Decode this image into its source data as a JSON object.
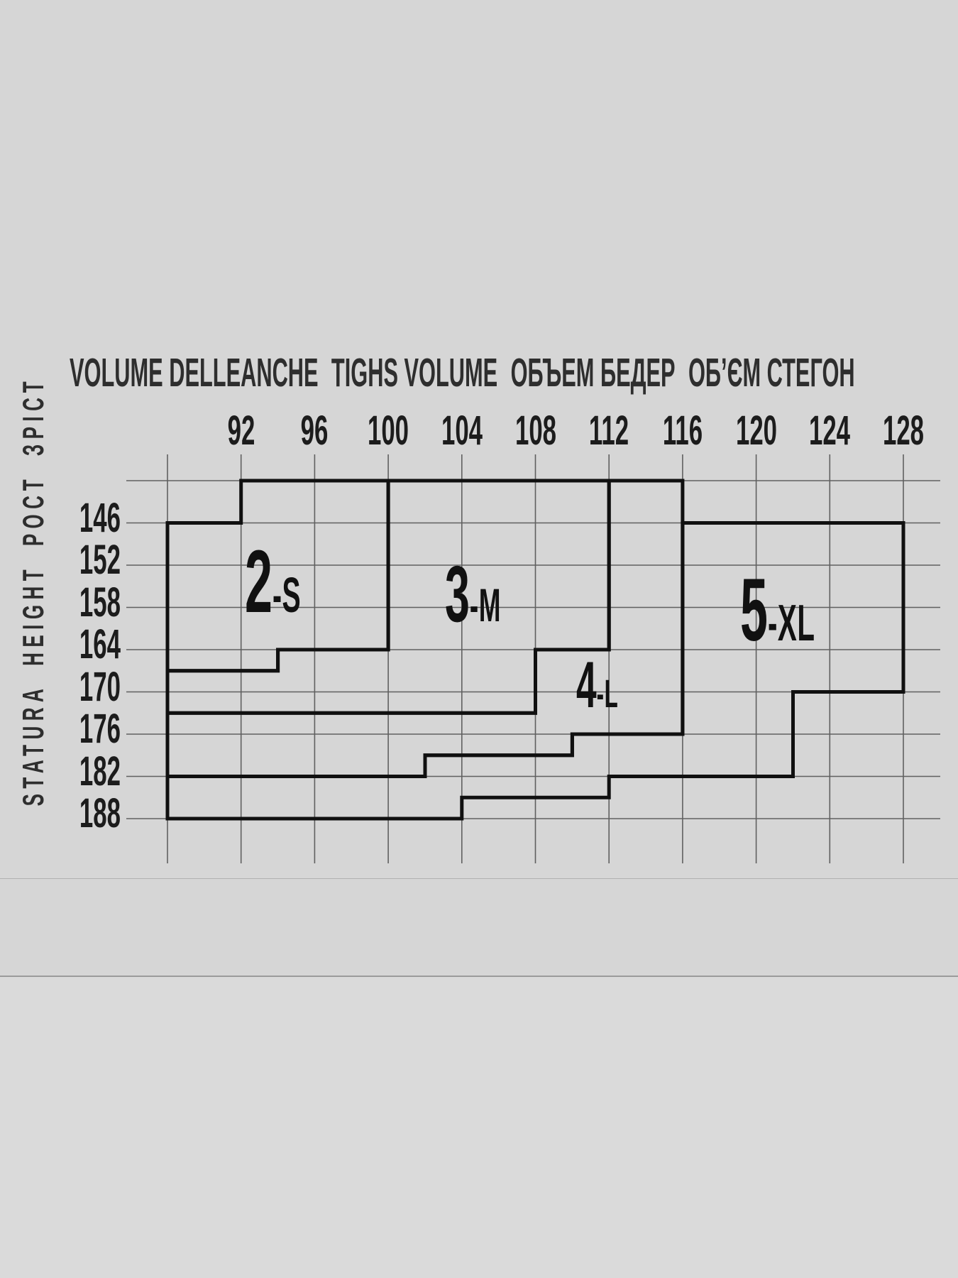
{
  "page": {
    "background_color": "#d6d6d6",
    "lower_panel_color": "#dadada"
  },
  "chart_data": {
    "type": "area",
    "description": "Tights sizing chart: stepped size regions plotted over a grid of height (cm, rows) versus hip volume (cm, columns)",
    "x_axis": {
      "label_groups": [
        "VOLUME DELLEANCHE",
        "TIGHS VOLUME",
        "ОБЪЕМ БЕДЕР",
        "ОБ’ЄМ СТЕГОН"
      ],
      "tick_labels": [
        92,
        96,
        100,
        104,
        108,
        112,
        116,
        120,
        124,
        128
      ],
      "gridlines": [
        88,
        92,
        96,
        100,
        104,
        108,
        112,
        116,
        120,
        124,
        128
      ],
      "range": [
        88,
        128
      ],
      "unit": "cm",
      "position": "top"
    },
    "y_axis": {
      "label": "STATURA HEIGHT РОСТ ЗРІСТ",
      "tick_labels": [
        146,
        152,
        158,
        164,
        170,
        176,
        182,
        188
      ],
      "gridlines": [
        140,
        146,
        152,
        158,
        164,
        170,
        176,
        182,
        188
      ],
      "range": [
        140,
        188
      ],
      "unit": "cm",
      "position": "left",
      "direction": "values increase downward"
    },
    "grid": "on",
    "regions": [
      {
        "size": "2-S",
        "digit": "2",
        "suffix": "-S",
        "polygon": [
          [
            92,
            140
          ],
          [
            100,
            140
          ],
          [
            100,
            164
          ],
          [
            94,
            164
          ],
          [
            94,
            167
          ],
          [
            88,
            167
          ],
          [
            88,
            146
          ],
          [
            92,
            146
          ]
        ]
      },
      {
        "size": "3-M",
        "digit": "3",
        "suffix": "-M",
        "polygon": [
          [
            100,
            140
          ],
          [
            112,
            140
          ],
          [
            112,
            164
          ],
          [
            108,
            164
          ],
          [
            108,
            173
          ],
          [
            88,
            173
          ],
          [
            88,
            167
          ],
          [
            94,
            167
          ],
          [
            94,
            164
          ],
          [
            100,
            164
          ]
        ]
      },
      {
        "size": "4-L",
        "digit": "4",
        "suffix": "-L",
        "polygon": [
          [
            112,
            140
          ],
          [
            116,
            140
          ],
          [
            116,
            176
          ],
          [
            110,
            176
          ],
          [
            110,
            179
          ],
          [
            102,
            179
          ],
          [
            102,
            182
          ],
          [
            88,
            182
          ],
          [
            88,
            173
          ],
          [
            108,
            173
          ],
          [
            108,
            164
          ],
          [
            112,
            164
          ]
        ]
      },
      {
        "size": "5-XL",
        "digit": "5",
        "suffix": "-XL",
        "polygon": [
          [
            116,
            146
          ],
          [
            128,
            146
          ],
          [
            128,
            170
          ],
          [
            122,
            170
          ],
          [
            122,
            182
          ],
          [
            112,
            182
          ],
          [
            112,
            185
          ],
          [
            104,
            185
          ],
          [
            104,
            188
          ],
          [
            88,
            188
          ],
          [
            88,
            182
          ],
          [
            102,
            182
          ],
          [
            102,
            179
          ],
          [
            110,
            179
          ],
          [
            110,
            176
          ],
          [
            116,
            176
          ]
        ]
      }
    ],
    "colors": {
      "grid_line": "#606060",
      "region_border": "#101010",
      "text": "#1c1c1c"
    }
  }
}
